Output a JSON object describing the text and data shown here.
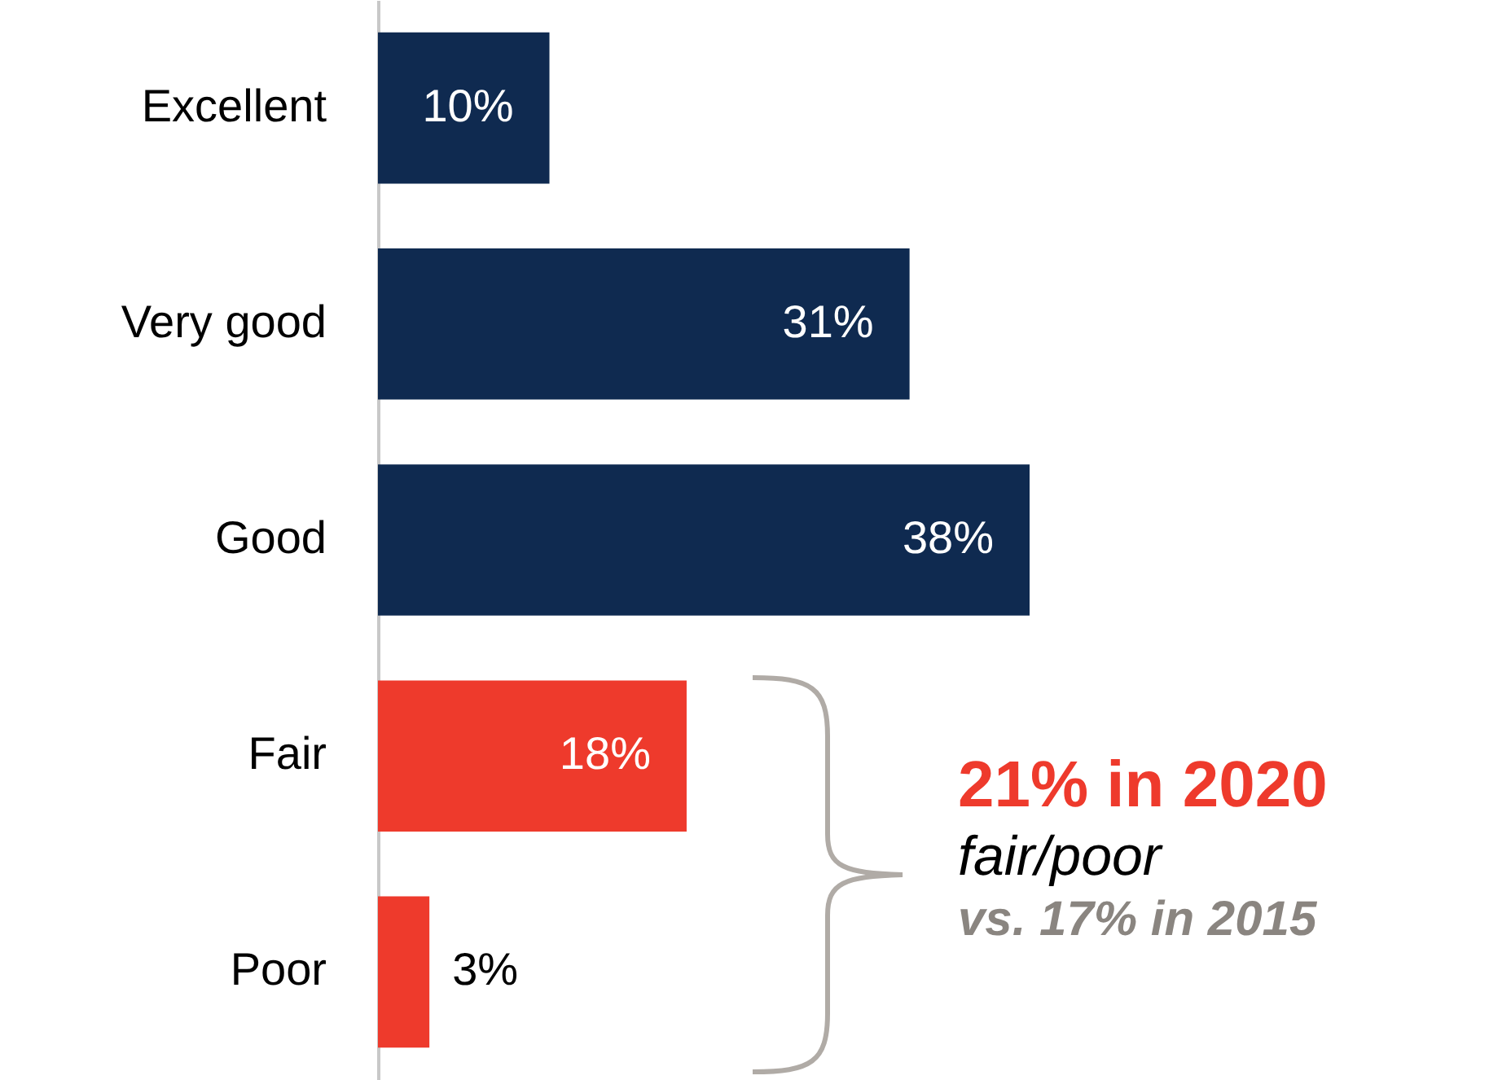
{
  "chart_data": {
    "type": "bar",
    "orientation": "horizontal",
    "categories": [
      "Excellent",
      "Very good",
      "Good",
      "Fair",
      "Poor"
    ],
    "values": [
      10,
      31,
      38,
      18,
      3
    ],
    "colors": [
      "#0f2a50",
      "#0f2a50",
      "#0f2a50",
      "#ee3a2c",
      "#ee3a2c"
    ],
    "data_labels": true,
    "value_labels": [
      "10%",
      "31%",
      "38%",
      "18%",
      "3%"
    ],
    "annotations": [
      "21% in 2020",
      "fair/poor",
      "vs. 17% in 2015"
    ]
  }
}
